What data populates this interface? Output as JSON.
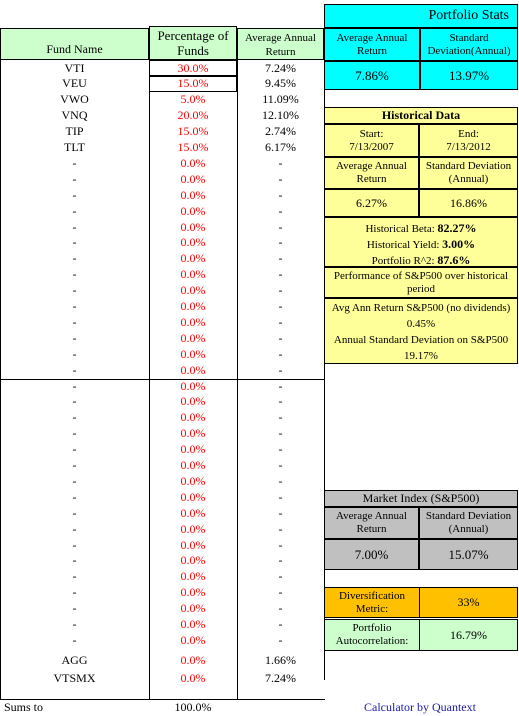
{
  "header": {
    "fund_name": "Fund Name",
    "percentage_of_funds": [
      "Percentage of",
      "Funds"
    ],
    "avg_annual_return": [
      "Average Annual",
      "Return"
    ]
  },
  "funds": [
    {
      "name": "VTI",
      "pct": "30.0%",
      "ret": "7.24%"
    },
    {
      "name": "VEU",
      "pct": "15.0%",
      "ret": "9.45%"
    },
    {
      "name": "VWO",
      "pct": "5.0%",
      "ret": "11.09%"
    },
    {
      "name": "VNQ",
      "pct": "20.0%",
      "ret": "12.10%"
    },
    {
      "name": "TIP",
      "pct": "15.0%",
      "ret": "2.74%"
    },
    {
      "name": "TLT",
      "pct": "15.0%",
      "ret": "6.17%"
    },
    {
      "name": "-",
      "pct": "0.0%",
      "ret": "-"
    },
    {
      "name": "-",
      "pct": "0.0%",
      "ret": "-"
    },
    {
      "name": "-",
      "pct": "0.0%",
      "ret": "-"
    },
    {
      "name": "-",
      "pct": "0.0%",
      "ret": "-"
    },
    {
      "name": "-",
      "pct": "0.0%",
      "ret": "-"
    },
    {
      "name": "-",
      "pct": "0.0%",
      "ret": "-"
    },
    {
      "name": "-",
      "pct": "0.0%",
      "ret": "-"
    },
    {
      "name": "-",
      "pct": "0.0%",
      "ret": "-"
    },
    {
      "name": "-",
      "pct": "0.0%",
      "ret": "-"
    },
    {
      "name": "-",
      "pct": "0.0%",
      "ret": "-"
    },
    {
      "name": "-",
      "pct": "0.0%",
      "ret": "-"
    },
    {
      "name": "-",
      "pct": "0.0%",
      "ret": "-"
    },
    {
      "name": "-",
      "pct": "0.0%",
      "ret": "-"
    },
    {
      "name": "-",
      "pct": "0.0%",
      "ret": "-"
    },
    {
      "name": "-",
      "pct": "0.0%",
      "ret": "-"
    },
    {
      "name": "-",
      "pct": "0.0%",
      "ret": "-"
    },
    {
      "name": "-",
      "pct": "0.0%",
      "ret": "-"
    },
    {
      "name": "-",
      "pct": "0.0%",
      "ret": "-"
    },
    {
      "name": "-",
      "pct": "0.0%",
      "ret": "-"
    },
    {
      "name": "-",
      "pct": "0.0%",
      "ret": "-"
    },
    {
      "name": "-",
      "pct": "0.0%",
      "ret": "-"
    },
    {
      "name": "-",
      "pct": "0.0%",
      "ret": "-"
    },
    {
      "name": "-",
      "pct": "0.0%",
      "ret": "-"
    },
    {
      "name": "-",
      "pct": "0.0%",
      "ret": "-"
    },
    {
      "name": "-",
      "pct": "0.0%",
      "ret": "-"
    },
    {
      "name": "-",
      "pct": "0.0%",
      "ret": "-"
    },
    {
      "name": "-",
      "pct": "0.0%",
      "ret": "-"
    },
    {
      "name": "-",
      "pct": "0.0%",
      "ret": "-"
    },
    {
      "name": "-",
      "pct": "0.0%",
      "ret": "-"
    },
    {
      "name": "-",
      "pct": "0.0%",
      "ret": "-"
    },
    {
      "name": "-",
      "pct": "0.0%",
      "ret": "-"
    },
    {
      "name": "AGG",
      "pct": "0.0%",
      "ret": "1.66%"
    },
    {
      "name": "VTSMX",
      "pct": "0.0%",
      "ret": "7.24%"
    }
  ],
  "sums": {
    "label": "Sums to",
    "value": "100.0%"
  },
  "portfolio_stats": {
    "title": "Portfolio Stats",
    "avg_label": [
      "Average Annual",
      "Return"
    ],
    "sd_label": [
      "Standard",
      "Deviation(Annual)"
    ],
    "avg_value": "7.86%",
    "sd_value": "13.97%"
  },
  "historical": {
    "title": "Historical Data",
    "start_label": "Start:",
    "start_date": "7/13/2007",
    "end_label": "End:",
    "end_date": "7/13/2012",
    "avg_label": [
      "Average Annual",
      "Return"
    ],
    "sd_label": [
      "Standard Deviation",
      "(Annual)"
    ],
    "avg_value": "6.27%",
    "sd_value": "16.86%",
    "beta_label": "Historical Beta:",
    "beta_value": "82.27%",
    "yield_label": "Historical Yield:",
    "yield_value": "3.00%",
    "r2_label": "Portfolio R^2:",
    "r2_value": "87.6%",
    "sp_perf": "Performance of S&P500 over historical period",
    "sp_avg_label": "Avg Ann Return S&P500 (no dividends)",
    "sp_avg_value": "0.45%",
    "sp_sd_label": "Annual Standard Deviation on S&P500",
    "sp_sd_value": "19.17%"
  },
  "market_index": {
    "title": "Market Index (S&P500)",
    "avg_label": [
      "Average Annual",
      "Return"
    ],
    "sd_label": [
      "Standard Deviation",
      "(Annual)"
    ],
    "avg_value": "7.00%",
    "sd_value": "15.07%"
  },
  "diversification": {
    "label": [
      "Diversification",
      "Metric:"
    ],
    "value": "33%"
  },
  "autocorrelation": {
    "label": [
      "Portfolio",
      "Autocorrelation:"
    ],
    "value": "16.79%"
  },
  "footer": {
    "credit": "Calculator by Quantext"
  },
  "colors": {
    "cyan": "#00ffff",
    "yellow": "#ffff99",
    "gray": "#c0c0c0",
    "orange": "#ffc000",
    "mint": "#ccffcc",
    "red_text": "#ff0000"
  }
}
